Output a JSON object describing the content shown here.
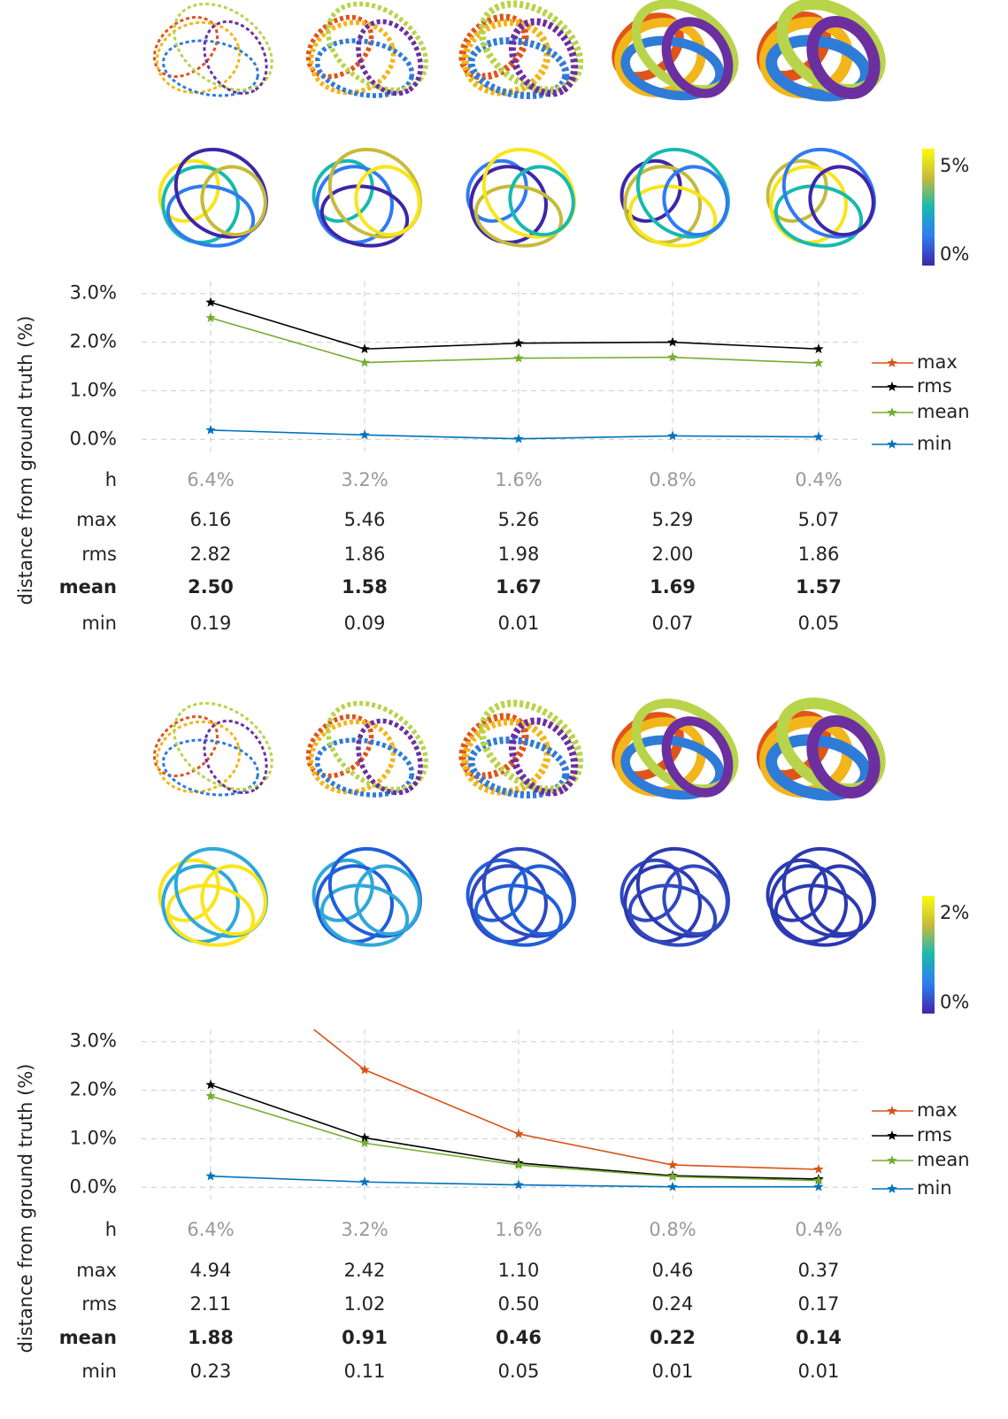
{
  "chart_data": [
    {
      "type": "line",
      "ylabel": "distance from ground truth (%)",
      "x_label": "h",
      "categories": [
        "6.4%",
        "3.2%",
        "1.6%",
        "0.8%",
        "0.4%"
      ],
      "ylim": [
        -0.25,
        3.25
      ],
      "yticks": [
        {
          "value": 3,
          "label": "3.0%"
        },
        {
          "value": 2,
          "label": "2.0%"
        },
        {
          "value": 1,
          "label": "1.0%"
        },
        {
          "value": 0,
          "label": "0.0%"
        }
      ],
      "grid": true,
      "legend": "right",
      "colorbar": {
        "ticks": [
          {
            "value": 5,
            "label": "5%"
          },
          {
            "value": 0,
            "label": "0%"
          }
        ]
      },
      "series": [
        {
          "name": "max",
          "color": "#d95319",
          "values": [
            6.16,
            5.46,
            5.26,
            5.29,
            5.07
          ],
          "value_labels": [
            "6.16",
            "5.46",
            "5.26",
            "5.29",
            "5.07"
          ]
        },
        {
          "name": "rms",
          "color": "#000000",
          "values": [
            2.82,
            1.86,
            1.98,
            2.0,
            1.86
          ],
          "value_labels": [
            "2.82",
            "1.86",
            "1.98",
            "2.00",
            "1.86"
          ]
        },
        {
          "name": "mean",
          "color": "#77ac30",
          "values": [
            2.5,
            1.58,
            1.67,
            1.69,
            1.57
          ],
          "value_labels": [
            "2.50",
            "1.58",
            "1.67",
            "1.69",
            "1.57"
          ]
        },
        {
          "name": "min",
          "color": "#0072bd",
          "values": [
            0.19,
            0.09,
            0.01,
            0.07,
            0.05
          ],
          "value_labels": [
            "0.19",
            "0.09",
            "0.01",
            "0.07",
            "0.05"
          ]
        }
      ]
    },
    {
      "type": "line",
      "ylabel": "distance from ground truth (%)",
      "x_label": "h",
      "categories": [
        "6.4%",
        "3.2%",
        "1.6%",
        "0.8%",
        "0.4%"
      ],
      "ylim": [
        -0.25,
        3.25
      ],
      "yticks": [
        {
          "value": 3,
          "label": "3.0%"
        },
        {
          "value": 2,
          "label": "2.0%"
        },
        {
          "value": 1,
          "label": "1.0%"
        },
        {
          "value": 0,
          "label": "0.0%"
        }
      ],
      "grid": true,
      "legend": "right",
      "colorbar": {
        "ticks": [
          {
            "value": 2,
            "label": "2%"
          },
          {
            "value": 0,
            "label": "0%"
          }
        ]
      },
      "series": [
        {
          "name": "max",
          "color": "#d95319",
          "values": [
            4.94,
            2.42,
            1.1,
            0.46,
            0.37
          ],
          "value_labels": [
            "4.94",
            "2.42",
            "1.10",
            "0.46",
            "0.37"
          ]
        },
        {
          "name": "rms",
          "color": "#000000",
          "values": [
            2.11,
            1.02,
            0.5,
            0.24,
            0.17
          ],
          "value_labels": [
            "2.11",
            "1.02",
            "0.50",
            "0.24",
            "0.17"
          ]
        },
        {
          "name": "mean",
          "color": "#77ac30",
          "values": [
            1.88,
            0.91,
            0.46,
            0.22,
            0.14
          ],
          "value_labels": [
            "1.88",
            "0.91",
            "0.46",
            "0.22",
            "0.14"
          ]
        },
        {
          "name": "min",
          "color": "#0072bd",
          "values": [
            0.23,
            0.11,
            0.05,
            0.01,
            0.01
          ],
          "value_labels": [
            "0.23",
            "0.11",
            "0.05",
            "0.01",
            "0.01"
          ]
        }
      ]
    }
  ]
}
